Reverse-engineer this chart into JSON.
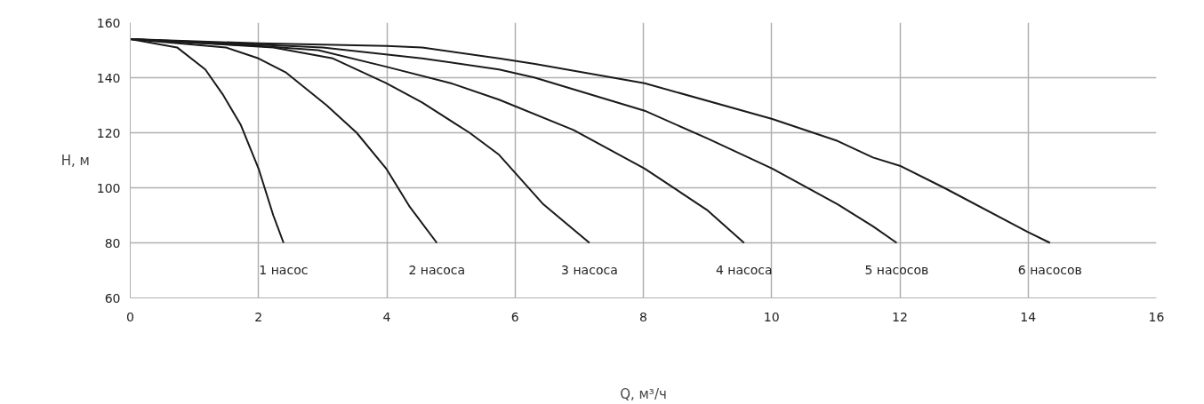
{
  "chart_data": {
    "type": "line",
    "xlabel": "Q, м³/ч",
    "ylabel": "H, м",
    "xlim": [
      0,
      16
    ],
    "xticks": [
      0,
      2,
      4,
      6,
      8,
      10,
      12,
      14,
      16
    ],
    "ylim": [
      60,
      160
    ],
    "yticks": [
      60,
      80,
      100,
      120,
      140,
      160
    ],
    "grid": true,
    "marker": "none",
    "line_style": "solid",
    "series": [
      {
        "name": "1 насос",
        "color": "#1a1a1a",
        "x": [
          0,
          0.73,
          1.17,
          1.44,
          1.72,
          2.0,
          2.23,
          2.39
        ],
        "values": [
          154,
          151,
          143,
          134,
          123,
          107,
          90,
          80
        ]
      },
      {
        "name": "2 насоса",
        "color": "#1a1a1a",
        "x": [
          0,
          1.49,
          2.0,
          2.42,
          3.06,
          3.53,
          3.99,
          4.36,
          4.78
        ],
        "values": [
          154,
          151,
          147,
          142,
          130,
          120,
          107,
          93,
          80
        ]
      },
      {
        "name": "3 насоса",
        "color": "#1a1a1a",
        "x": [
          0,
          1.5,
          2.23,
          3.16,
          3.99,
          4.55,
          5.29,
          5.75,
          6.44,
          7.16
        ],
        "values": [
          154,
          152,
          151,
          147,
          138,
          131,
          120,
          112,
          94,
          80
        ]
      },
      {
        "name": "4 насоса",
        "color": "#1a1a1a",
        "x": [
          0,
          2.0,
          2.93,
          3.99,
          5.0,
          5.75,
          6.91,
          8.02,
          8.99,
          9.57
        ],
        "values": [
          154,
          151.5,
          150,
          144,
          138,
          132,
          121,
          107,
          92,
          80
        ]
      },
      {
        "name": "5 насосов",
        "color": "#1a1a1a",
        "x": [
          0,
          2.0,
          3.0,
          4.55,
          5.75,
          6.31,
          8.02,
          8.99,
          10.01,
          11.03,
          11.58,
          11.95
        ],
        "values": [
          154,
          152,
          151,
          147,
          143,
          140,
          128,
          118,
          107,
          94,
          86,
          80
        ]
      },
      {
        "name": "6 насосов",
        "color": "#1a1a1a",
        "x": [
          0,
          2.0,
          4.0,
          4.55,
          5.75,
          6.31,
          8.02,
          10.01,
          11.03,
          11.58,
          12.0,
          12.69,
          13.99,
          14.34
        ],
        "values": [
          154,
          152.5,
          151.5,
          151,
          147,
          145,
          138,
          125,
          117,
          111,
          108,
          100,
          84,
          80
        ]
      }
    ]
  }
}
